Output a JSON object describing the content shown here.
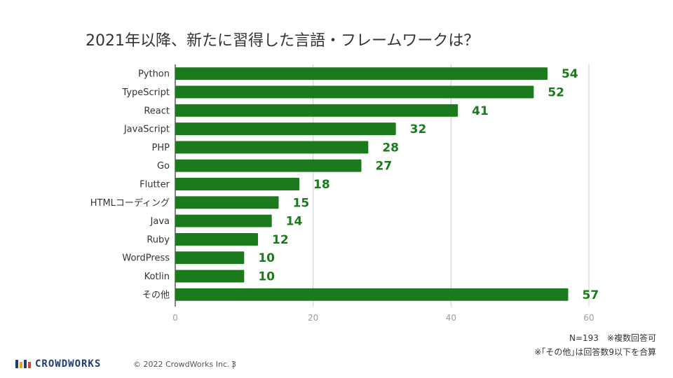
{
  "chart_data": {
    "type": "bar",
    "orientation": "horizontal",
    "title": "2021年以降、新たに習得した言語・フレームワークは？",
    "categories": [
      "Python",
      "TypeScript",
      "React",
      "JavaScript",
      "PHP",
      "Go",
      "Flutter",
      "HTMLコーディング",
      "Java",
      "Ruby",
      "WordPress",
      "Kotlin",
      "その他"
    ],
    "values": [
      54,
      52,
      41,
      32,
      28,
      27,
      18,
      15,
      14,
      12,
      10,
      10,
      57
    ],
    "xlim": [
      0,
      60
    ],
    "xticks": [
      0,
      20,
      40,
      60
    ],
    "grid": true,
    "bar_color": "#1b7a1b",
    "label_color": "#1b7a1b"
  },
  "notes": {
    "sample": "N=193　※複数回答可",
    "other": "※｢その他｣は回答数9以下を合算"
  },
  "footer": {
    "logo_text": "CROWDWORKS",
    "copyright": "© 2022 CrowdWorks Inc.  |",
    "page_number": "3"
  }
}
